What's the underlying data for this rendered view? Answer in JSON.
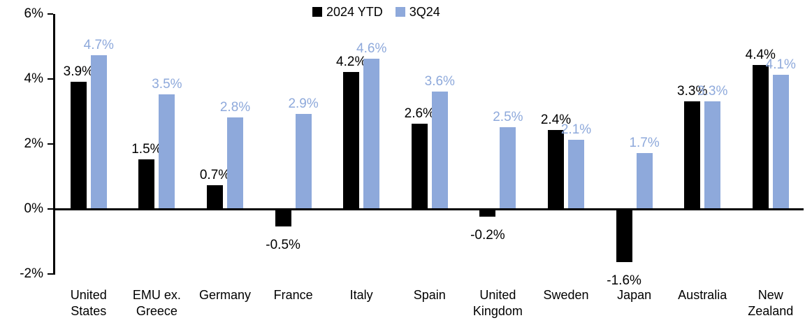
{
  "chart_data": {
    "type": "bar",
    "title": "",
    "xlabel": "",
    "ylabel": "",
    "ylim": [
      -2,
      6
    ],
    "yticks": [
      6,
      4,
      2,
      0,
      -2
    ],
    "ytick_labels": [
      "6%",
      "4%",
      "2%",
      "0%",
      "-2%"
    ],
    "grid": false,
    "legend_position": "top-center",
    "categories": [
      "United\nStates",
      "EMU ex.\nGreece",
      "Germany",
      "France",
      "Italy",
      "Spain",
      "United\nKingdom",
      "Sweden",
      "Japan",
      "Australia",
      "New\nZealand"
    ],
    "series": [
      {
        "id": "2024-ytd",
        "name": "2024 YTD",
        "color": "#000000",
        "label_color": "#000000",
        "values": [
          3.9,
          1.5,
          0.7,
          -0.5,
          4.2,
          2.6,
          -0.2,
          2.4,
          -1.6,
          3.3,
          4.4
        ],
        "labels": [
          "3.9%",
          "1.5%",
          "0.7%",
          "-0.5%",
          "4.2%",
          "2.6%",
          "-0.2%",
          "2.4%",
          "-1.6%",
          "3.3%",
          "4.4%"
        ]
      },
      {
        "id": "3q24",
        "name": "3Q24",
        "color": "#8EA9DB",
        "label_color": "#8EA9DB",
        "values": [
          4.7,
          3.5,
          2.8,
          2.9,
          4.6,
          3.6,
          2.5,
          2.1,
          1.7,
          3.3,
          4.1
        ],
        "labels": [
          "4.7%",
          "3.5%",
          "2.8%",
          "2.9%",
          "4.6%",
          "3.6%",
          "2.5%",
          "2.1%",
          "1.7%",
          "3.3%",
          "4.1%"
        ]
      }
    ]
  }
}
